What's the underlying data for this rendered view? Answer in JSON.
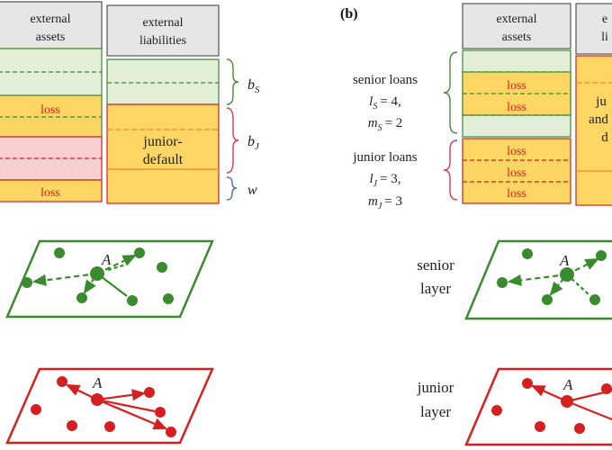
{
  "panel_a": {
    "assets_header": [
      "external",
      "assets"
    ],
    "liabilities_header": [
      "external",
      "liabilities"
    ],
    "loss_label": "loss",
    "junior_default": [
      "junior-",
      "default"
    ],
    "brace_labels": {
      "bs": "b",
      "bs_sub": "S",
      "bj": "b",
      "bj_sub": "J",
      "w": "w"
    },
    "node_label": "A"
  },
  "panel_b": {
    "label": "(b)",
    "assets_header": [
      "external",
      "assets"
    ],
    "liabilities_header_partial": [
      "e",
      "li"
    ],
    "loss_labels": [
      "loss",
      "loss",
      "loss",
      "loss",
      "loss"
    ],
    "liability_partial": [
      "ju",
      "and",
      "d"
    ],
    "senior_loans": {
      "title": "senior loans",
      "l": "l",
      "l_sub": "S",
      "l_val": "= 4,",
      "m": "m",
      "m_sub": "S",
      "m_val": "= 2"
    },
    "junior_loans": {
      "title": "junior loans",
      "l": "l",
      "l_sub": "J",
      "l_val": "= 3,",
      "m": "m",
      "m_sub": "J",
      "m_val": "= 3"
    },
    "senior_layer": [
      "senior",
      "layer"
    ],
    "junior_layer": [
      "junior",
      "layer"
    ],
    "node_label": "A"
  },
  "colors": {
    "green_fill": "#e3efd9",
    "yellow_fill": "#fdd663",
    "pink_fill": "#f8d0d0",
    "header_fill": "#e6e6e6",
    "green": "#3a8a2e",
    "red": "#d42020",
    "brace_green": "#4a8a3a",
    "brace_red": "#d04050",
    "brace_blue": "#4a6fb0"
  }
}
